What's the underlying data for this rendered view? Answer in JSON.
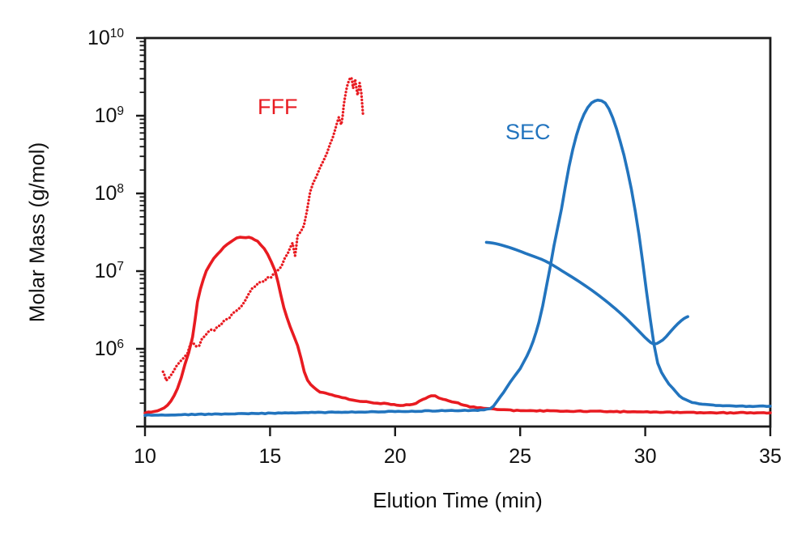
{
  "figure": {
    "colors": {
      "fff": "#e81b21",
      "sec": "#2274be",
      "axis": "#1a1a1a"
    },
    "x_ticks": [
      10,
      15,
      20,
      25,
      30,
      35
    ],
    "y_labeled_exponents": [
      6,
      7,
      8,
      9,
      10
    ],
    "y_decade_exponents": [
      5,
      6,
      7,
      8,
      9,
      10
    ]
  },
  "chart_data": {
    "type": "line",
    "title": "",
    "xlabel": "Elution Time (min)",
    "ylabel": "Molar Mass (g/mol)",
    "xlim": [
      10,
      35
    ],
    "ylim": [
      100000.0,
      10000000000.0
    ],
    "y_scale": "log",
    "grid": false,
    "legend_position": "none",
    "annotations": [
      {
        "text": "FFF",
        "color_key": "fff",
        "x": 14.6,
        "y": 1200000000.0
      },
      {
        "text": "SEC",
        "color_key": "sec",
        "x": 24.5,
        "y": 700000000.0
      }
    ],
    "series": [
      {
        "name": "FFF concentration signal",
        "color_key": "fff",
        "style": "solid",
        "points": [
          [
            10.0,
            150000.0
          ],
          [
            10.5,
            160000.0
          ],
          [
            10.9,
            190000.0
          ],
          [
            11.3,
            310000.0
          ],
          [
            11.6,
            630000.0
          ],
          [
            11.9,
            1400000.0
          ],
          [
            12.1,
            4000000.0
          ],
          [
            12.45,
            10000000.0
          ],
          [
            12.9,
            16500000.0
          ],
          [
            13.4,
            23500000.0
          ],
          [
            13.8,
            27000000.0
          ],
          [
            14.15,
            27000000.0
          ],
          [
            14.5,
            24000000.0
          ],
          [
            14.9,
            16500000.0
          ],
          [
            15.2,
            10000000.0
          ],
          [
            15.55,
            3400000.0
          ],
          [
            15.8,
            1950000.0
          ],
          [
            16.1,
            1100000.0
          ],
          [
            16.5,
            390000.0
          ],
          [
            17.0,
            280000.0
          ],
          [
            17.6,
            250000.0
          ],
          [
            18.3,
            220000.0
          ],
          [
            19.0,
            205000.0
          ],
          [
            19.7,
            195000.0
          ],
          [
            20.2,
            188000.0
          ],
          [
            20.7,
            195000.0
          ],
          [
            21.1,
            220000.0
          ],
          [
            21.45,
            250000.0
          ],
          [
            21.9,
            225000.0
          ],
          [
            22.4,
            205000.0
          ],
          [
            23.0,
            180000.0
          ],
          [
            23.7,
            170000.0
          ],
          [
            25.0,
            160000.0
          ],
          [
            27.0,
            158000.0
          ],
          [
            29.0,
            155000.0
          ],
          [
            31.0,
            152000.0
          ],
          [
            33.0,
            150000.0
          ],
          [
            35.0,
            150000.0
          ]
        ]
      },
      {
        "name": "FFF molar mass",
        "color_key": "fff",
        "style": "dotted",
        "points": [
          [
            10.72,
            520000.0
          ],
          [
            10.85,
            400000.0
          ],
          [
            11.1,
            500000.0
          ],
          [
            11.4,
            710000.0
          ],
          [
            11.7,
            900000.0
          ],
          [
            11.87,
            1300000.0
          ],
          [
            12.05,
            1050000.0
          ],
          [
            12.4,
            1500000.0
          ],
          [
            12.9,
            1900000.0
          ],
          [
            13.5,
            2800000.0
          ],
          [
            14.0,
            4000000.0
          ],
          [
            14.3,
            6000000.0
          ],
          [
            14.9,
            8000000.0
          ],
          [
            15.3,
            10000000.0
          ],
          [
            15.6,
            14500000.0
          ],
          [
            15.8,
            19500000.0
          ],
          [
            15.9,
            23000000.0
          ],
          [
            16.0,
            16000000.0
          ],
          [
            16.1,
            28000000.0
          ],
          [
            16.35,
            37000000.0
          ],
          [
            16.6,
            100000000.0
          ],
          [
            16.85,
            170000000.0
          ],
          [
            17.15,
            260000000.0
          ],
          [
            17.4,
            430000000.0
          ],
          [
            17.6,
            660000000.0
          ],
          [
            17.75,
            930000000.0
          ],
          [
            17.85,
            780000000.0
          ],
          [
            17.95,
            1450000000.0
          ],
          [
            18.05,
            2100000000.0
          ],
          [
            18.15,
            2900000000.0
          ],
          [
            18.25,
            3200000000.0
          ],
          [
            18.32,
            2200000000.0
          ],
          [
            18.4,
            2900000000.0
          ],
          [
            18.5,
            1900000000.0
          ],
          [
            18.58,
            2600000000.0
          ],
          [
            18.65,
            2000000000.0
          ],
          [
            18.72,
            950000000.0
          ]
        ]
      },
      {
        "name": "SEC concentration signal",
        "color_key": "sec",
        "style": "solid",
        "points": [
          [
            10.0,
            140000.0
          ],
          [
            12.0,
            143000.0
          ],
          [
            14.0,
            146000.0
          ],
          [
            16.0,
            150000.0
          ],
          [
            18.0,
            153000.0
          ],
          [
            20.0,
            156000.0
          ],
          [
            22.0,
            160000.0
          ],
          [
            23.3,
            162000.0
          ],
          [
            23.8,
            170000.0
          ],
          [
            24.2,
            240000.0
          ],
          [
            24.6,
            370000.0
          ],
          [
            25.0,
            560000.0
          ],
          [
            25.4,
            1000000.0
          ],
          [
            25.75,
            2200000.0
          ],
          [
            26.05,
            6300000.0
          ],
          [
            26.35,
            21000000.0
          ],
          [
            26.65,
            63000000.0
          ],
          [
            26.95,
            220000000.0
          ],
          [
            27.25,
            560000000.0
          ],
          [
            27.55,
            1050000000.0
          ],
          [
            27.85,
            1450000000.0
          ],
          [
            28.1,
            1600000000.0
          ],
          [
            28.4,
            1450000000.0
          ],
          [
            28.7,
            930000000.0
          ],
          [
            29.0,
            470000000.0
          ],
          [
            29.3,
            190000000.0
          ],
          [
            29.6,
            60000000.0
          ],
          [
            29.9,
            13000000.0
          ],
          [
            30.2,
            2400000.0
          ],
          [
            30.5,
            650000.0
          ],
          [
            30.8,
            410000.0
          ],
          [
            31.1,
            310000.0
          ],
          [
            31.5,
            230000.0
          ],
          [
            32.0,
            200000.0
          ],
          [
            32.7,
            188000.0
          ],
          [
            33.5,
            184000.0
          ],
          [
            34.3,
            182000.0
          ],
          [
            35.0,
            182000.0
          ]
        ]
      },
      {
        "name": "SEC molar mass",
        "color_key": "sec",
        "style": "solid",
        "points": [
          [
            23.65,
            23500000.0
          ],
          [
            23.9,
            23000000.0
          ],
          [
            24.5,
            20500000.0
          ],
          [
            25.2,
            17000000.0
          ],
          [
            26.0,
            13500000.0
          ],
          [
            26.8,
            9500000.0
          ],
          [
            27.6,
            6500000.0
          ],
          [
            28.4,
            4200000.0
          ],
          [
            29.1,
            2700000.0
          ],
          [
            29.7,
            1750000.0
          ],
          [
            30.1,
            1300000.0
          ],
          [
            30.35,
            1150000.0
          ],
          [
            30.7,
            1300000.0
          ],
          [
            31.0,
            1650000.0
          ],
          [
            31.3,
            2100000.0
          ],
          [
            31.55,
            2450000.0
          ],
          [
            31.7,
            2600000.0
          ]
        ]
      }
    ]
  }
}
